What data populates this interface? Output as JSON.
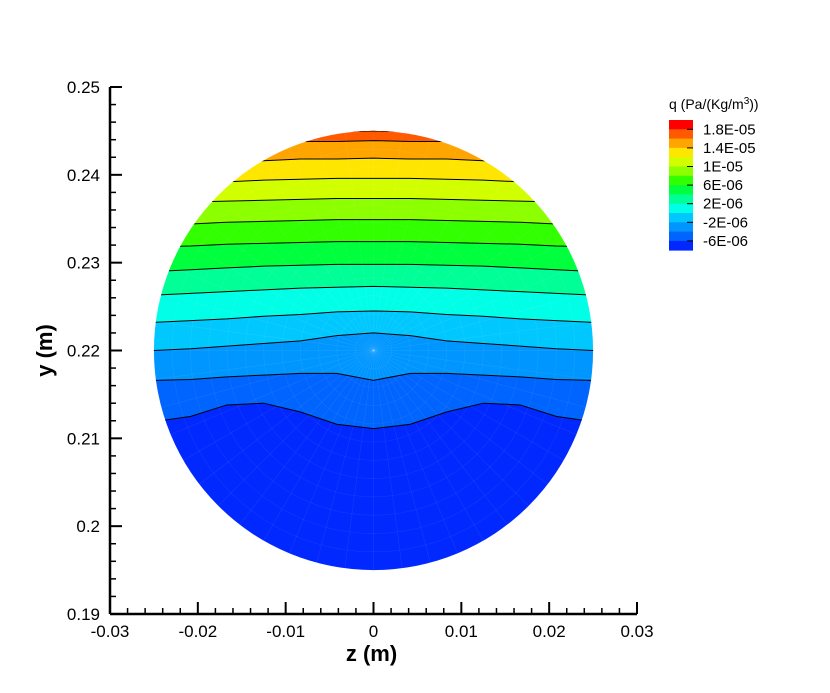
{
  "chart_data": {
    "type": "contour",
    "xlabel": "z  (m)",
    "ylabel": "y  (m)",
    "xlim": [
      -0.03,
      0.03
    ],
    "ylim": [
      0.19,
      0.25
    ],
    "x_ticks": [
      -0.03,
      -0.02,
      -0.01,
      0,
      0.01,
      0.02,
      0.03
    ],
    "x_tick_labels": [
      "-0.03",
      "-0.02",
      "-0.01",
      "0",
      "0.01",
      "0.02",
      "0.03"
    ],
    "y_ticks": [
      0.19,
      0.2,
      0.21,
      0.22,
      0.23,
      0.24,
      0.25
    ],
    "y_tick_labels": [
      "0.19",
      "0.2",
      "0.21",
      "0.22",
      "0.23",
      "0.24",
      "0.25"
    ],
    "domain": {
      "shape": "circle",
      "center_z": 0,
      "center_y": 0.22,
      "radius": 0.025
    },
    "legend": {
      "title_prefix": "q  (Pa/(Kg/m",
      "title_sup": "3",
      "title_suffix": "))",
      "placement": "top-right",
      "labels": [
        "1.8E-05",
        "1.4E-05",
        "1E-05",
        "6E-06",
        "2E-06",
        "-2E-06",
        "-6E-06"
      ],
      "levels": [
        {
          "value": 2e-05,
          "color": "#ff0000"
        },
        {
          "value": 1.8e-05,
          "color": "#ff5a00"
        },
        {
          "value": 1.6e-05,
          "color": "#ffa500"
        },
        {
          "value": 1.4e-05,
          "color": "#ffe600"
        },
        {
          "value": 1.2e-05,
          "color": "#d2ff00"
        },
        {
          "value": 1e-05,
          "color": "#8cff00"
        },
        {
          "value": 8e-06,
          "color": "#32ff00"
        },
        {
          "value": 6e-06,
          "color": "#00ff3c"
        },
        {
          "value": 4e-06,
          "color": "#00ff96"
        },
        {
          "value": 2e-06,
          "color": "#00ffe6"
        },
        {
          "value": 0.0,
          "color": "#00c8ff"
        },
        {
          "value": -2e-06,
          "color": "#0096ff"
        },
        {
          "value": -4e-06,
          "color": "#0064ff"
        },
        {
          "value": -6e-06,
          "color": "#0028ff"
        }
      ]
    },
    "bands": [
      {
        "color": "#0028ff",
        "bottom_y": null,
        "top_y": [
          0.2119,
          0.2125,
          0.2138,
          0.214,
          0.213,
          0.2116,
          0.2111,
          0.2116,
          0.213,
          0.214,
          0.2138,
          0.2125,
          0.2119
        ]
      },
      {
        "color": "#0064ff",
        "bottom_y": "prev",
        "top_y": [
          0.2166,
          0.2167,
          0.217,
          0.2172,
          0.2174,
          0.2174,
          0.2166,
          0.2174,
          0.2174,
          0.2172,
          0.217,
          0.2167,
          0.2166
        ]
      },
      {
        "color": "#0096ff",
        "bottom_y": "prev",
        "top_y": [
          0.22,
          0.2202,
          0.2205,
          0.2208,
          0.2211,
          0.2217,
          0.222,
          0.2217,
          0.2211,
          0.2208,
          0.2205,
          0.2202,
          0.22
        ]
      },
      {
        "color": "#00c8ff",
        "bottom_y": "prev",
        "top_y": [
          0.2232,
          0.2234,
          0.2236,
          0.2239,
          0.2241,
          0.2244,
          0.2245,
          0.2244,
          0.2241,
          0.2239,
          0.2236,
          0.2234,
          0.2232
        ]
      },
      {
        "color": "#00ffe6",
        "bottom_y": "prev",
        "top_y": [
          0.2263,
          0.2265,
          0.2267,
          0.2269,
          0.2271,
          0.2272,
          0.2273,
          0.2272,
          0.2271,
          0.2269,
          0.2267,
          0.2265,
          0.2263
        ]
      },
      {
        "color": "#00ff96",
        "bottom_y": "prev",
        "top_y": [
          0.229,
          0.2292,
          0.2294,
          0.2296,
          0.2297,
          0.2298,
          0.2298,
          0.2298,
          0.2297,
          0.2296,
          0.2294,
          0.2292,
          0.229
        ]
      },
      {
        "color": "#00ff3c",
        "bottom_y": "prev",
        "top_y": [
          0.2318,
          0.2319,
          0.2321,
          0.2322,
          0.2323,
          0.2324,
          0.2324,
          0.2324,
          0.2323,
          0.2322,
          0.2321,
          0.2319,
          0.2318
        ]
      },
      {
        "color": "#32ff00",
        "bottom_y": "prev",
        "top_y": [
          0.2342,
          0.2344,
          0.2346,
          0.2347,
          0.2348,
          0.2349,
          0.2349,
          0.2349,
          0.2348,
          0.2347,
          0.2346,
          0.2344,
          0.2342
        ]
      },
      {
        "color": "#8cff00",
        "bottom_y": "prev",
        "top_y": [
          0.2367,
          0.2369,
          0.237,
          0.2371,
          0.2372,
          0.2373,
          0.2373,
          0.2373,
          0.2372,
          0.2371,
          0.237,
          0.2369,
          0.2367
        ]
      },
      {
        "color": "#d2ff00",
        "bottom_y": "prev",
        "top_y": [
          0.2387,
          0.239,
          0.2392,
          0.2394,
          0.2395,
          0.2396,
          0.2396,
          0.2396,
          0.2395,
          0.2394,
          0.2392,
          0.239,
          0.2387
        ]
      },
      {
        "color": "#ffe600",
        "bottom_y": "prev",
        "top_y": [
          0.241,
          0.2412,
          0.2415,
          0.2416,
          0.2418,
          0.2418,
          0.2419,
          0.2418,
          0.2418,
          0.2416,
          0.2415,
          0.2412,
          0.241
        ]
      },
      {
        "color": "#ffa500",
        "bottom_y": "prev",
        "top_y": [
          0.243,
          0.2432,
          0.2434,
          0.2436,
          0.2438,
          0.2438,
          0.2439,
          0.2438,
          0.2438,
          0.2436,
          0.2434,
          0.2432,
          0.243
        ]
      },
      {
        "color": "#ff5a00",
        "bottom_y": "prev",
        "top_y": [
          0.2445,
          0.2446,
          0.2447,
          0.2448,
          0.2449,
          0.2449,
          0.245,
          0.2449,
          0.2449,
          0.2448,
          0.2447,
          0.2446,
          0.2445
        ]
      },
      {
        "color": "#ff0000",
        "bottom_y": "prev",
        "top_y": null
      }
    ],
    "band_z_samples": [
      -0.025,
      -0.0208,
      -0.0167,
      -0.0125,
      -0.0083,
      -0.0042,
      0,
      0.0042,
      0.0083,
      0.0125,
      0.0167,
      0.0208,
      0.025
    ]
  }
}
